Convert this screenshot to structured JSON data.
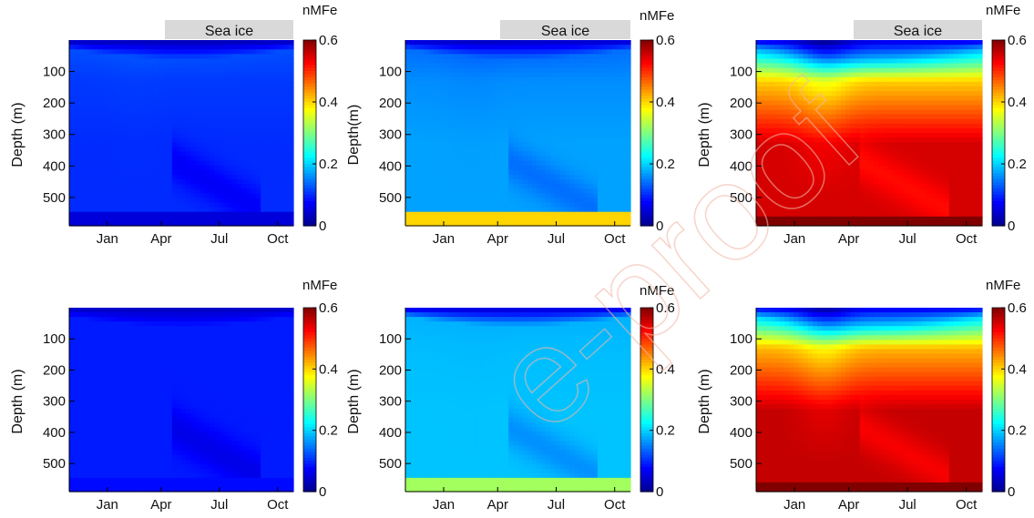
{
  "figure": {
    "watermark": "e-proof"
  },
  "colors": {
    "colormap": [
      "#00008f",
      "#0000ff",
      "#0080ff",
      "#00ffff",
      "#80ff80",
      "#ffff00",
      "#ff8000",
      "#ff0000",
      "#800000"
    ],
    "sea_ice_bar": "#d9d9d9",
    "axis": "#000000"
  },
  "chart_data": [
    {
      "type": "heatmap",
      "panel": "top-left",
      "xtick_labels": [
        "Jan",
        "Apr",
        "Jul",
        "Oct"
      ],
      "ytick_labels": [
        "100",
        "200",
        "300",
        "400",
        "500"
      ],
      "ylabel": "Depth (m)",
      "ylim": [
        0,
        590
      ],
      "colorbar": {
        "label": "nMFe",
        "ticks": [
          "0",
          "0.2",
          "0.4",
          "0.6"
        ],
        "range": [
          0,
          0.6
        ]
      },
      "sea_ice_label": "Sea ice",
      "sea_ice_period": [
        "Apr",
        "Oct"
      ],
      "field": {
        "surface": 0.02,
        "upper": 0.12,
        "deep": 0.1,
        "bottom": 0.05,
        "bottom_depth": 550
      }
    },
    {
      "type": "heatmap",
      "panel": "top-middle",
      "xtick_labels": [
        "Jan",
        "Apr",
        "Jul",
        "Oct"
      ],
      "ytick_labels": [
        "100",
        "200",
        "300",
        "400",
        "500"
      ],
      "ylabel": "Depth(m)",
      "ylim": [
        0,
        590
      ],
      "colorbar": {
        "label": "nMFe",
        "ticks": [
          "0",
          "0.2",
          "0.4",
          "0.6"
        ],
        "range": [
          0,
          0.6
        ]
      },
      "sea_ice_label": "Sea ice",
      "sea_ice_period": [
        "Apr",
        "Oct"
      ],
      "field": {
        "surface": 0.03,
        "upper": 0.14,
        "deep": 0.17,
        "bottom": 0.4,
        "bottom_depth": 540
      }
    },
    {
      "type": "heatmap",
      "panel": "top-right",
      "xtick_labels": [
        "Jan",
        "Apr",
        "Jul",
        "Oct"
      ],
      "ytick_labels": [
        "100",
        "200",
        "300",
        "400",
        "500"
      ],
      "ylabel": "Depth (m)",
      "ylim": [
        0,
        590
      ],
      "colorbar": {
        "label": "nMFe",
        "ticks": [
          "0",
          "0.2",
          "0.4",
          "0.6"
        ],
        "range": [
          0,
          0.6
        ]
      },
      "sea_ice_label": "Sea ice",
      "sea_ice_period": [
        "Apr",
        "Oct"
      ],
      "field": {
        "surface": 0.05,
        "upper": 0.18,
        "deep": 0.55,
        "bottom": 0.6,
        "bottom_depth": 560
      }
    },
    {
      "type": "heatmap",
      "panel": "bottom-left",
      "xtick_labels": [
        "Jan",
        "Apr",
        "Jul",
        "Oct"
      ],
      "ytick_labels": [
        "100",
        "200",
        "300",
        "400",
        "500"
      ],
      "ylabel": "Depth (m)",
      "ylim": [
        0,
        590
      ],
      "colorbar": {
        "label": "nMFe",
        "ticks": [
          "0",
          "0.2",
          "0.4",
          "0.6"
        ],
        "range": [
          0,
          0.6
        ]
      },
      "field": {
        "surface": 0.03,
        "upper": 0.09,
        "deep": 0.09,
        "bottom": 0.08,
        "bottom_depth": 550
      }
    },
    {
      "type": "heatmap",
      "panel": "bottom-middle",
      "xtick_labels": [
        "Jan",
        "Apr",
        "Jul",
        "Oct"
      ],
      "ytick_labels": [
        "100",
        "200",
        "300",
        "400",
        "500"
      ],
      "ylabel": "Depth (m)",
      "ylim": [
        0,
        590
      ],
      "colorbar": {
        "label": "nMFe",
        "ticks": [
          "0",
          "0.2",
          "0.4",
          "0.6"
        ],
        "range": [
          0,
          0.6
        ]
      },
      "field": {
        "surface": 0.04,
        "upper": 0.18,
        "deep": 0.19,
        "bottom": 0.32,
        "bottom_depth": 550
      }
    },
    {
      "type": "heatmap",
      "panel": "bottom-right",
      "xtick_labels": [
        "Jan",
        "Apr",
        "Jul",
        "Oct"
      ],
      "ytick_labels": [
        "100",
        "200",
        "300",
        "400",
        "500"
      ],
      "ylabel": "Depth (m)",
      "ylim": [
        0,
        590
      ],
      "colorbar": {
        "label": "nMFe",
        "ticks": [
          "0",
          "0.2",
          "0.4",
          "0.6"
        ],
        "range": [
          0,
          0.6
        ]
      },
      "field": {
        "surface": 0.06,
        "upper": 0.2,
        "deep": 0.56,
        "bottom": 0.6,
        "bottom_depth": 560
      }
    }
  ]
}
